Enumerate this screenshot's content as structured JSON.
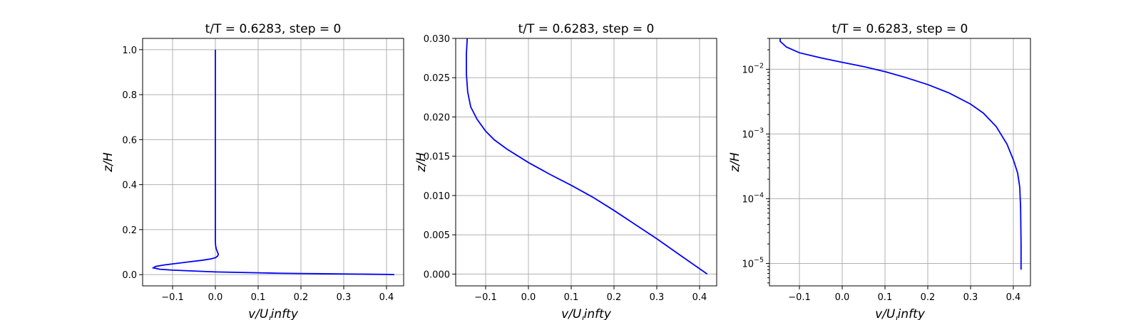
{
  "chart_data": [
    {
      "type": "line",
      "title": "t/T = 0.6283, step = 0",
      "xlabel": "v/U_l infty",
      "ylabel": "z/H",
      "xscale": "linear",
      "yscale": "linear",
      "xlim": [
        -0.17,
        0.44
      ],
      "ylim": [
        -0.05,
        1.05
      ],
      "xticks": [
        -0.1,
        0.0,
        0.1,
        0.2,
        0.3,
        0.4
      ],
      "xtick_labels": [
        "−0.1",
        "0.0",
        "0.1",
        "0.2",
        "0.3",
        "0.4"
      ],
      "yticks": [
        0.0,
        0.2,
        0.4,
        0.6,
        0.8,
        1.0
      ],
      "ytick_labels": [
        "0.0",
        "0.2",
        "0.4",
        "0.6",
        "0.8",
        "1.0"
      ],
      "grid": true,
      "color": "#0000ff",
      "series": [
        {
          "x": [
            0.418,
            0.4,
            0.35,
            0.3,
            0.25,
            0.2,
            0.15,
            0.1,
            0.05,
            0.0,
            -0.05,
            -0.1,
            -0.13,
            -0.145,
            -0.14,
            -0.12,
            -0.09,
            -0.06,
            -0.03,
            -0.01,
            0.0,
            0.005,
            0.007,
            0.005,
            0.002,
            0.0005,
            0.0,
            0.0,
            0.0,
            0.0,
            0.0
          ],
          "y": [
            0.0,
            0.001,
            0.002,
            0.003,
            0.004,
            0.005,
            0.006,
            0.008,
            0.01,
            0.012,
            0.016,
            0.02,
            0.024,
            0.03,
            0.036,
            0.043,
            0.05,
            0.057,
            0.064,
            0.07,
            0.075,
            0.082,
            0.09,
            0.1,
            0.115,
            0.13,
            0.15,
            0.3,
            0.5,
            0.8,
            1.0
          ]
        }
      ]
    },
    {
      "type": "line",
      "title": "t/T = 0.6283, step = 0",
      "xlabel": "v/U_l infty",
      "ylabel": "z/H",
      "xscale": "linear",
      "yscale": "linear",
      "xlim": [
        -0.17,
        0.44
      ],
      "ylim": [
        -0.0015,
        0.03
      ],
      "xticks": [
        -0.1,
        0.0,
        0.1,
        0.2,
        0.3,
        0.4
      ],
      "xtick_labels": [
        "−0.1",
        "0.0",
        "0.1",
        "0.2",
        "0.3",
        "0.4"
      ],
      "yticks": [
        0.0,
        0.005,
        0.01,
        0.015,
        0.02,
        0.025,
        0.03
      ],
      "ytick_labels": [
        "0.000",
        "0.005",
        "0.010",
        "0.015",
        "0.020",
        "0.025",
        "0.030"
      ],
      "grid": true,
      "color": "#0000ff",
      "series": [
        {
          "x": [
            0.418,
            0.36,
            0.3,
            0.25,
            0.2,
            0.15,
            0.1,
            0.05,
            0.0,
            -0.05,
            -0.08,
            -0.1,
            -0.12,
            -0.135,
            -0.142,
            -0.145,
            -0.145,
            -0.143
          ],
          "y": [
            0.0,
            0.0022,
            0.0045,
            0.0063,
            0.0081,
            0.0098,
            0.0113,
            0.0127,
            0.0142,
            0.0159,
            0.0171,
            0.0182,
            0.0197,
            0.0213,
            0.0232,
            0.0255,
            0.028,
            0.03
          ]
        }
      ]
    },
    {
      "type": "line",
      "title": "t/T = 0.6283, step = 0",
      "xlabel": "v/U_l infty",
      "ylabel": "z/H",
      "xscale": "linear",
      "yscale": "log",
      "xlim": [
        -0.17,
        0.44
      ],
      "ylim": [
        4.5e-06,
        0.03
      ],
      "xticks": [
        -0.1,
        0.0,
        0.1,
        0.2,
        0.3,
        0.4
      ],
      "xtick_labels": [
        "−0.1",
        "0.0",
        "0.1",
        "0.2",
        "0.3",
        "0.4"
      ],
      "yticks": [
        1e-05,
        0.0001,
        0.001,
        0.01
      ],
      "ytick_labels": [
        {
          "base": "10",
          "exp": "−5"
        },
        {
          "base": "10",
          "exp": "−4"
        },
        {
          "base": "10",
          "exp": "−3"
        },
        {
          "base": "10",
          "exp": "−2"
        }
      ],
      "grid": true,
      "color": "#0000ff",
      "series": [
        {
          "x": [
            0.418,
            0.418,
            0.417,
            0.415,
            0.41,
            0.4,
            0.385,
            0.36,
            0.33,
            0.3,
            0.25,
            0.2,
            0.15,
            0.1,
            0.05,
            0.0,
            -0.05,
            -0.1,
            -0.13,
            -0.145,
            -0.145
          ],
          "y": [
            8e-06,
            2e-05,
            7e-05,
            0.00015,
            0.00025,
            0.0004,
            0.0007,
            0.0013,
            0.0021,
            0.0029,
            0.0043,
            0.0058,
            0.0074,
            0.0092,
            0.011,
            0.0128,
            0.015,
            0.018,
            0.022,
            0.027,
            0.03
          ]
        }
      ]
    }
  ]
}
